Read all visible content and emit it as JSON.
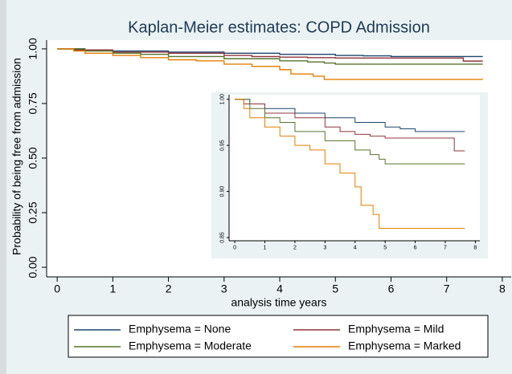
{
  "chart_data": [
    {
      "type": "step",
      "title": "Kaplan-Meier estimates: COPD Admission",
      "x_label": "analysis time years",
      "y_label": "Probability of being free from admission",
      "xlim": [
        -0.19,
        8.16
      ],
      "ylim": [
        -0.044,
        1.04
      ],
      "xticks": [
        0,
        1,
        2,
        3,
        4,
        5,
        6,
        7,
        8
      ],
      "yticks": [
        {
          "value": 0,
          "label": "0.00"
        },
        {
          "value": 0.25,
          "label": "0.25"
        },
        {
          "value": 0.5,
          "label": "0.50"
        },
        {
          "value": 0.75,
          "label": "0.75"
        },
        {
          "value": 1,
          "label": "1.00"
        }
      ],
      "series": [
        {
          "name": "Emphysema = None",
          "color": "#1a476f",
          "x": [
            0,
            0.5,
            1,
            2,
            3,
            4,
            5,
            5.5,
            6,
            7.65
          ],
          "values": [
            1,
            0.995,
            0.99,
            0.985,
            0.98,
            0.975,
            0.97,
            0.968,
            0.965,
            0.965
          ]
        },
        {
          "name": "Emphysema = Mild",
          "color": "#90353b",
          "x": [
            0,
            0.3,
            1,
            2,
            3,
            3.5,
            4,
            4.5,
            5,
            7.3,
            7.65
          ],
          "values": [
            1,
            0.995,
            0.985,
            0.98,
            0.97,
            0.965,
            0.962,
            0.96,
            0.958,
            0.944,
            0.944
          ]
        },
        {
          "name": "Emphysema = Moderate",
          "color": "#55752f",
          "x": [
            0,
            0.5,
            1,
            1.5,
            2,
            3,
            4,
            4.5,
            4.8,
            5,
            7.65
          ],
          "values": [
            1,
            0.99,
            0.98,
            0.975,
            0.965,
            0.955,
            0.945,
            0.94,
            0.935,
            0.93,
            0.93
          ]
        },
        {
          "name": "Emphysema = Marked",
          "color": "#e37e00",
          "x": [
            0,
            0.3,
            0.5,
            1,
            1.5,
            2,
            2.5,
            3,
            3.5,
            4,
            4.2,
            4.6,
            4.8,
            7.65
          ],
          "values": [
            1,
            0.99,
            0.98,
            0.97,
            0.96,
            0.95,
            0.945,
            0.93,
            0.92,
            0.905,
            0.885,
            0.875,
            0.86,
            0.86
          ]
        }
      ]
    },
    {
      "type": "step",
      "xlim": [
        -0.19,
        8.15
      ],
      "ylim": [
        0.8465,
        1.005
      ],
      "xticks": [
        0,
        1,
        2,
        3,
        4,
        5,
        6,
        7,
        8
      ],
      "yticks": [
        {
          "value": 0.85,
          "label": "0.85"
        },
        {
          "value": 0.9,
          "label": "0.90"
        },
        {
          "value": 0.95,
          "label": "0.95"
        },
        {
          "value": 1,
          "label": "1.00"
        }
      ],
      "series": [
        {
          "color": "#1a476f",
          "x": [
            0,
            0.5,
            1,
            2,
            3,
            4,
            5,
            5.5,
            6,
            7.65
          ],
          "values": [
            1,
            0.995,
            0.99,
            0.985,
            0.98,
            0.975,
            0.97,
            0.968,
            0.965,
            0.965
          ]
        },
        {
          "color": "#90353b",
          "x": [
            0,
            0.3,
            1,
            2,
            3,
            3.5,
            4,
            4.5,
            5,
            7.3,
            7.65
          ],
          "values": [
            1,
            0.995,
            0.985,
            0.98,
            0.97,
            0.965,
            0.962,
            0.96,
            0.958,
            0.944,
            0.944
          ]
        },
        {
          "color": "#55752f",
          "x": [
            0,
            0.5,
            1,
            1.5,
            2,
            3,
            4,
            4.5,
            4.8,
            5,
            7.65
          ],
          "values": [
            1,
            0.99,
            0.98,
            0.975,
            0.965,
            0.955,
            0.945,
            0.94,
            0.935,
            0.93,
            0.93
          ]
        },
        {
          "color": "#e37e00",
          "x": [
            0,
            0.3,
            0.5,
            1,
            1.5,
            2,
            2.5,
            3,
            3.5,
            4,
            4.2,
            4.6,
            4.8,
            7.65
          ],
          "values": [
            1,
            0.99,
            0.98,
            0.97,
            0.96,
            0.95,
            0.945,
            0.93,
            0.92,
            0.905,
            0.885,
            0.875,
            0.86,
            0.86
          ]
        }
      ]
    }
  ]
}
